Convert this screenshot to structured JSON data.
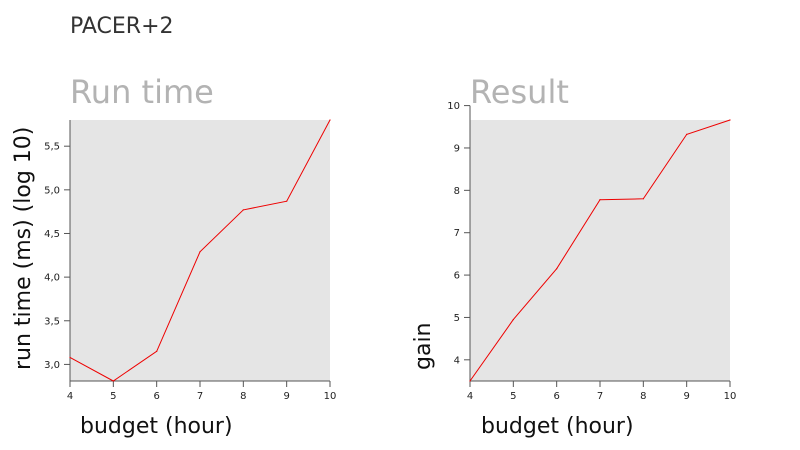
{
  "page_title": "PACER+2",
  "colors": {
    "line": "#ee0000",
    "panel_bg": "#e5e5e5",
    "title": "#b3b3b3"
  },
  "chart_data": [
    {
      "type": "line",
      "title": "Run time",
      "xlabel": "budget (hour)",
      "ylabel": "run time (ms) (log 10)",
      "x": [
        4,
        5,
        6,
        7,
        8,
        9,
        10
      ],
      "series": [
        {
          "values": [
            3.08,
            2.81,
            3.15,
            4.29,
            4.77,
            4.87,
            5.8
          ]
        }
      ],
      "xlim": [
        4,
        10
      ],
      "ylim": [
        2.81,
        5.8
      ],
      "xticks": [
        4,
        5,
        6,
        7,
        8,
        9,
        10
      ],
      "xtick_labels": [
        "4",
        "5",
        "6",
        "7",
        "8",
        "9",
        "10"
      ],
      "yticks": [
        3.0,
        3.5,
        4.0,
        4.5,
        5.0,
        5.5
      ],
      "ytick_labels": [
        "3,0",
        "3,5",
        "4,0",
        "4,5",
        "5,0",
        "5,5"
      ],
      "grid": false
    },
    {
      "type": "line",
      "title": "Result",
      "xlabel": "budget (hour)",
      "ylabel": "gain",
      "x": [
        4,
        5,
        6,
        7,
        8,
        9,
        10
      ],
      "series": [
        {
          "values": [
            3.5,
            4.95,
            6.15,
            7.78,
            7.8,
            9.32,
            9.66
          ]
        }
      ],
      "xlim": [
        4,
        10
      ],
      "ylim": [
        3.5,
        9.66
      ],
      "xticks": [
        4,
        5,
        6,
        7,
        8,
        9,
        10
      ],
      "xtick_labels": [
        "4",
        "5",
        "6",
        "7",
        "8",
        "9",
        "10"
      ],
      "yticks": [
        4,
        5,
        6,
        7,
        8,
        9,
        10
      ],
      "ytick_labels": [
        "4",
        "5",
        "6",
        "7",
        "8",
        "9",
        "10"
      ],
      "grid": false
    }
  ]
}
